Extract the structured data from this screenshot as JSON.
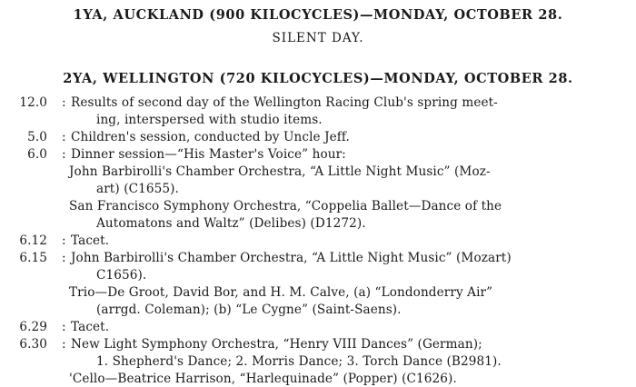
{
  "station1": {
    "heading": "1YA, AUCKLAND (900 KILOCYCLES)—MONDAY, OCTOBER 28.",
    "note": "SILENT DAY."
  },
  "station2": {
    "heading": "2YA, WELLINGTON (720 KILOCYCLES)—MONDAY, OCTOBER 28.",
    "lines": [
      {
        "time": "12.0",
        "text": "Results of second day of the Wellington Racing Club's spring meet-",
        "indent": "main"
      },
      {
        "time": "",
        "text": "ing, interspersed with studio items.",
        "indent": "cont"
      },
      {
        "time": "5.0",
        "text": "Children's session, conducted by Uncle Jeff.",
        "indent": "main"
      },
      {
        "time": "6.0",
        "text": "Dinner session—“His Master's Voice” hour:",
        "indent": "main"
      },
      {
        "time": "",
        "text": "John Barbirolli's Chamber Orchestra, “A Little Night Music” (Moz-",
        "indent": "item"
      },
      {
        "time": "",
        "text": "art) (C1655).",
        "indent": "cont"
      },
      {
        "time": "",
        "text": "San Francisco Symphony Orchestra, “Coppelia Ballet—Dance of the",
        "indent": "item"
      },
      {
        "time": "",
        "text": "Automatons and Waltz” (Delibes) (D1272).",
        "indent": "cont"
      },
      {
        "time": "6.12",
        "text": "Tacet.",
        "indent": "main"
      },
      {
        "time": "6.15",
        "text": "John Barbirolli's Chamber Orchestra, “A Little Night Music” (Mozart)",
        "indent": "main"
      },
      {
        "time": "",
        "text": "C1656).",
        "indent": "cont"
      },
      {
        "time": "",
        "text": "Trio—De Groot, David Bor, and H. M. Calve, (a) “Londonderry Air”",
        "indent": "item"
      },
      {
        "time": "",
        "text": "(arrgd. Coleman); (b) “Le Cygne” (Saint-Saens).",
        "indent": "cont"
      },
      {
        "time": "6.29",
        "text": "Tacet.",
        "indent": "main"
      },
      {
        "time": "6.30",
        "text": "New Light Symphony Orchestra, “Henry VIII Dances” (German);",
        "indent": "main"
      },
      {
        "time": "",
        "text": "1. Shepherd's Dance; 2. Morris Dance; 3. Torch Dance (B2981).",
        "indent": "cont"
      },
      {
        "time": "",
        "text": "'Cello—Beatrice Harrison, “Harlequinade” (Popper) (C1626).",
        "indent": "item"
      }
    ]
  }
}
